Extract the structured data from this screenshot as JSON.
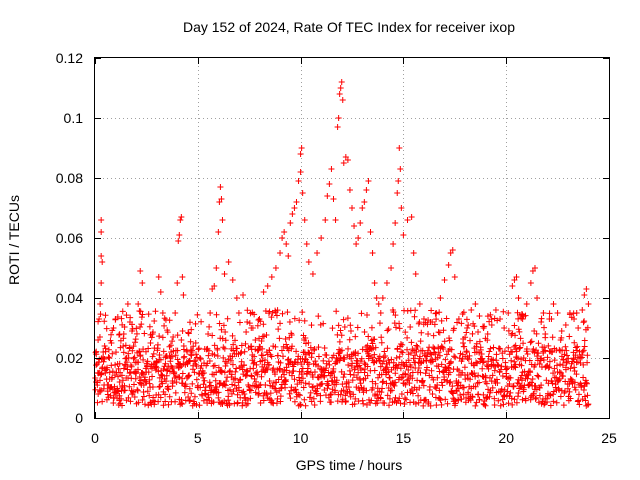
{
  "chart_data": {
    "type": "scatter",
    "title": "Day 152 of 2024, Rate Of TEC Index for receiver ixop",
    "xlabel": "GPS time / hours",
    "ylabel": "ROTI / TECUs",
    "xlim": [
      0,
      25
    ],
    "ylim": [
      0,
      0.12
    ],
    "xticks": [
      0,
      5,
      10,
      15,
      20,
      25
    ],
    "xtick_labels": [
      "0",
      "5",
      "10",
      "15",
      "20",
      "25"
    ],
    "yticks": [
      0,
      0.02,
      0.04,
      0.06,
      0.08,
      0.1,
      0.12
    ],
    "ytick_labels": [
      "0",
      "0.02",
      "0.04",
      "0.06",
      "0.08",
      "0.1",
      "0.12"
    ],
    "grid": true,
    "marker": "+",
    "series_color": "#ff0000",
    "series": [
      {
        "name": "ROTI",
        "points": [
          [
            0.05,
            0.012
          ],
          [
            0.1,
            0.018
          ],
          [
            0.15,
            0.026
          ],
          [
            0.2,
            0.033
          ],
          [
            0.25,
            0.038
          ],
          [
            0.3,
            0.045
          ],
          [
            0.3,
            0.054
          ],
          [
            0.3,
            0.062
          ],
          [
            0.3,
            0.066
          ],
          [
            0.35,
            0.052
          ],
          [
            0.4,
            0.022
          ],
          [
            0.5,
            0.015
          ],
          [
            0.6,
            0.011
          ],
          [
            0.7,
            0.02
          ],
          [
            0.8,
            0.025
          ],
          [
            0.9,
            0.03
          ],
          [
            1.0,
            0.033
          ],
          [
            1.1,
            0.018
          ],
          [
            1.2,
            0.012
          ],
          [
            1.4,
            0.028
          ],
          [
            1.6,
            0.038
          ],
          [
            1.7,
            0.032
          ],
          [
            1.8,
            0.029
          ],
          [
            2.0,
            0.015
          ],
          [
            2.1,
            0.038
          ],
          [
            2.2,
            0.049
          ],
          [
            2.3,
            0.045
          ],
          [
            2.5,
            0.012
          ],
          [
            2.7,
            0.025
          ],
          [
            2.8,
            0.028
          ],
          [
            3.0,
            0.019
          ],
          [
            3.1,
            0.047
          ],
          [
            3.2,
            0.042
          ],
          [
            3.3,
            0.035
          ],
          [
            3.5,
            0.016
          ],
          [
            3.7,
            0.022
          ],
          [
            3.8,
            0.027
          ],
          [
            3.9,
            0.035
          ],
          [
            4.0,
            0.045
          ],
          [
            4.05,
            0.059
          ],
          [
            4.1,
            0.061
          ],
          [
            4.15,
            0.066
          ],
          [
            4.2,
            0.067
          ],
          [
            4.25,
            0.047
          ],
          [
            4.3,
            0.041
          ],
          [
            4.5,
            0.018
          ],
          [
            4.7,
            0.022
          ],
          [
            4.9,
            0.025
          ],
          [
            5.1,
            0.02
          ],
          [
            5.3,
            0.015
          ],
          [
            5.5,
            0.028
          ],
          [
            5.6,
            0.035
          ],
          [
            5.7,
            0.043
          ],
          [
            5.8,
            0.044
          ],
          [
            5.9,
            0.05
          ],
          [
            6.0,
            0.062
          ],
          [
            6.05,
            0.072
          ],
          [
            6.1,
            0.077
          ],
          [
            6.15,
            0.073
          ],
          [
            6.2,
            0.066
          ],
          [
            6.3,
            0.048
          ],
          [
            6.5,
            0.052
          ],
          [
            6.7,
            0.046
          ],
          [
            6.9,
            0.04
          ],
          [
            7.0,
            0.035
          ],
          [
            7.2,
            0.041
          ],
          [
            7.4,
            0.032
          ],
          [
            7.6,
            0.03
          ],
          [
            7.8,
            0.026
          ],
          [
            8.0,
            0.033
          ],
          [
            8.2,
            0.042
          ],
          [
            8.4,
            0.044
          ],
          [
            8.6,
            0.047
          ],
          [
            8.8,
            0.05
          ],
          [
            9.0,
            0.055
          ],
          [
            9.1,
            0.06
          ],
          [
            9.2,
            0.062
          ],
          [
            9.3,
            0.058
          ],
          [
            9.4,
            0.054
          ],
          [
            9.5,
            0.065
          ],
          [
            9.6,
            0.068
          ],
          [
            9.7,
            0.07
          ],
          [
            9.8,
            0.072
          ],
          [
            9.9,
            0.079
          ],
          [
            10.0,
            0.082
          ],
          [
            10.0,
            0.088
          ],
          [
            10.05,
            0.09
          ],
          [
            10.1,
            0.075
          ],
          [
            10.2,
            0.066
          ],
          [
            10.3,
            0.058
          ],
          [
            10.4,
            0.052
          ],
          [
            10.6,
            0.048
          ],
          [
            10.8,
            0.055
          ],
          [
            11.0,
            0.06
          ],
          [
            11.2,
            0.066
          ],
          [
            11.3,
            0.074
          ],
          [
            11.4,
            0.078
          ],
          [
            11.5,
            0.083
          ],
          [
            11.6,
            0.073
          ],
          [
            11.7,
            0.066
          ],
          [
            11.8,
            0.097
          ],
          [
            11.85,
            0.1
          ],
          [
            11.9,
            0.108
          ],
          [
            11.95,
            0.11
          ],
          [
            12.0,
            0.112
          ],
          [
            12.05,
            0.106
          ],
          [
            12.1,
            0.085
          ],
          [
            12.2,
            0.087
          ],
          [
            12.3,
            0.086
          ],
          [
            12.4,
            0.076
          ],
          [
            12.5,
            0.07
          ],
          [
            12.6,
            0.064
          ],
          [
            12.7,
            0.058
          ],
          [
            12.8,
            0.06
          ],
          [
            12.9,
            0.065
          ],
          [
            13.0,
            0.07
          ],
          [
            13.1,
            0.072
          ],
          [
            13.2,
            0.076
          ],
          [
            13.3,
            0.079
          ],
          [
            13.4,
            0.062
          ],
          [
            13.5,
            0.055
          ],
          [
            13.6,
            0.045
          ],
          [
            13.7,
            0.04
          ],
          [
            13.8,
            0.038
          ],
          [
            13.9,
            0.035
          ],
          [
            14.0,
            0.04
          ],
          [
            14.2,
            0.045
          ],
          [
            14.4,
            0.05
          ],
          [
            14.5,
            0.058
          ],
          [
            14.6,
            0.065
          ],
          [
            14.7,
            0.075
          ],
          [
            14.75,
            0.079
          ],
          [
            14.8,
            0.09
          ],
          [
            14.85,
            0.083
          ],
          [
            14.9,
            0.07
          ],
          [
            15.0,
            0.061
          ],
          [
            15.2,
            0.066
          ],
          [
            15.4,
            0.067
          ],
          [
            15.5,
            0.055
          ],
          [
            15.6,
            0.048
          ],
          [
            15.8,
            0.038
          ],
          [
            16.0,
            0.033
          ],
          [
            16.2,
            0.028
          ],
          [
            16.4,
            0.032
          ],
          [
            16.6,
            0.035
          ],
          [
            16.8,
            0.04
          ],
          [
            17.0,
            0.046
          ],
          [
            17.2,
            0.051
          ],
          [
            17.3,
            0.055
          ],
          [
            17.4,
            0.056
          ],
          [
            17.5,
            0.047
          ],
          [
            17.7,
            0.033
          ],
          [
            17.9,
            0.025
          ],
          [
            18.1,
            0.03
          ],
          [
            18.3,
            0.036
          ],
          [
            18.5,
            0.038
          ],
          [
            18.7,
            0.034
          ],
          [
            18.9,
            0.03
          ],
          [
            19.1,
            0.028
          ],
          [
            19.3,
            0.031
          ],
          [
            19.5,
            0.036
          ],
          [
            19.7,
            0.033
          ],
          [
            19.9,
            0.03
          ],
          [
            20.1,
            0.035
          ],
          [
            20.3,
            0.044
          ],
          [
            20.4,
            0.046
          ],
          [
            20.5,
            0.047
          ],
          [
            20.6,
            0.04
          ],
          [
            20.8,
            0.033
          ],
          [
            21.0,
            0.038
          ],
          [
            21.2,
            0.045
          ],
          [
            21.3,
            0.049
          ],
          [
            21.4,
            0.05
          ],
          [
            21.5,
            0.04
          ],
          [
            21.7,
            0.032
          ],
          [
            21.9,
            0.028
          ],
          [
            22.1,
            0.033
          ],
          [
            22.3,
            0.038
          ],
          [
            22.5,
            0.035
          ],
          [
            22.7,
            0.029
          ],
          [
            22.9,
            0.031
          ],
          [
            23.1,
            0.035
          ],
          [
            23.3,
            0.033
          ],
          [
            23.5,
            0.03
          ],
          [
            23.7,
            0.036
          ],
          [
            23.8,
            0.041
          ],
          [
            23.9,
            0.043
          ],
          [
            24.0,
            0.038
          ]
        ]
      }
    ],
    "baseline_band": {
      "description_note": "dense cluster of points between roughly 0.005 and 0.025 TECUs across 0-24 h",
      "x_range": [
        0,
        24
      ],
      "y_low": 0.004,
      "y_high": 0.024,
      "x_step": 0.03
    }
  }
}
